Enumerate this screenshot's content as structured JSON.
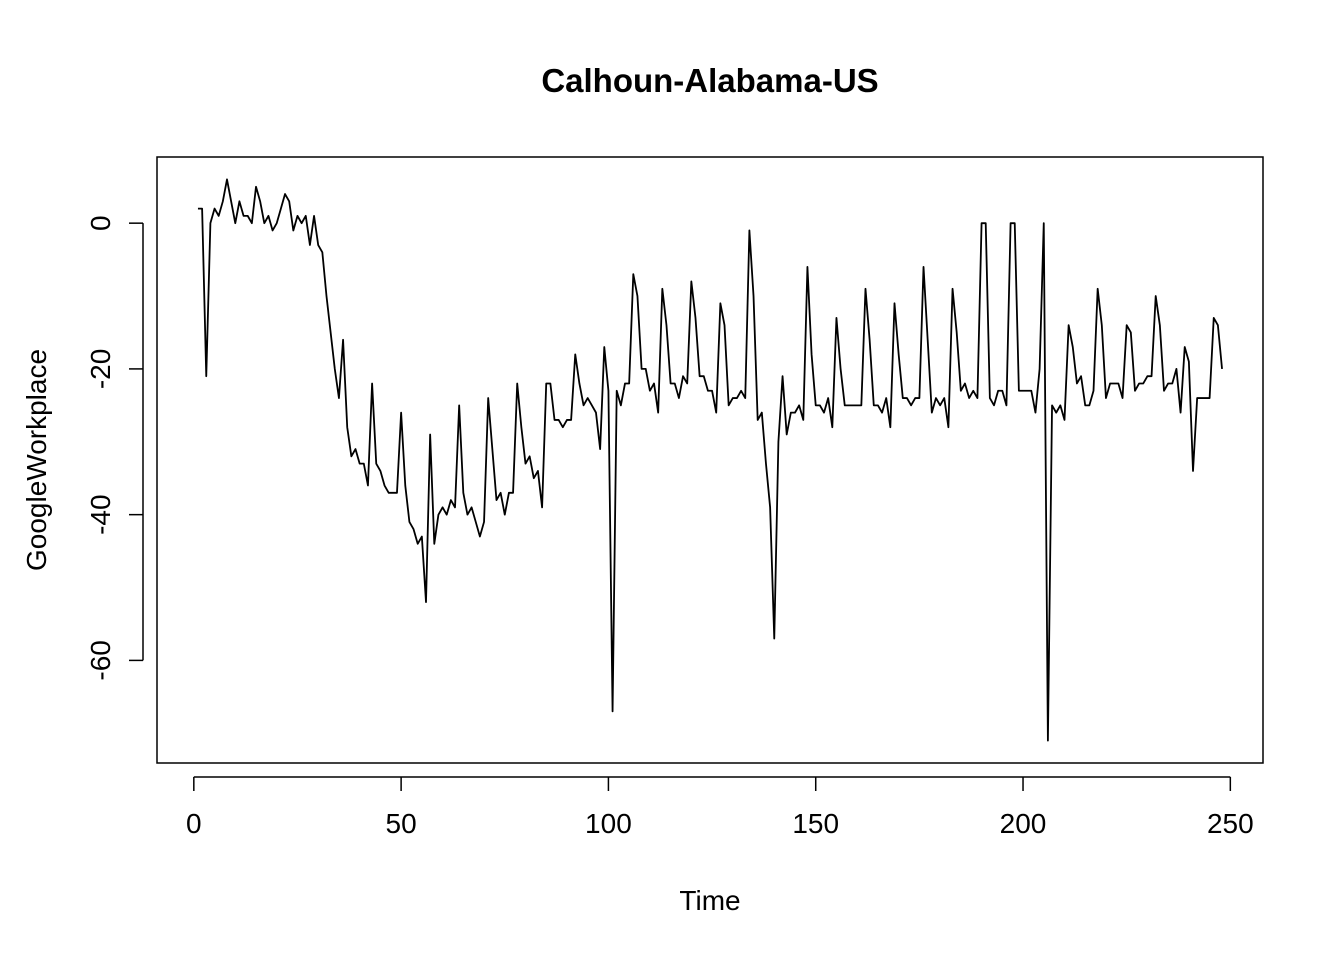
{
  "chart_data": {
    "type": "line",
    "title": "Calhoun-Alabama-US",
    "x_label": "Time",
    "y_label": "GoogleWorkplace",
    "color": "#000000",
    "x": [
      1,
      2,
      3,
      4,
      5,
      6,
      7,
      8,
      9,
      10,
      11,
      12,
      13,
      14,
      15,
      16,
      17,
      18,
      19,
      20,
      21,
      22,
      23,
      24,
      25,
      26,
      27,
      28,
      29,
      30,
      31,
      32,
      33,
      34,
      35,
      36,
      37,
      38,
      39,
      40,
      41,
      42,
      43,
      44,
      45,
      46,
      47,
      48,
      49,
      50,
      51,
      52,
      53,
      54,
      55,
      56,
      57,
      58,
      59,
      60,
      61,
      62,
      63,
      64,
      65,
      66,
      67,
      68,
      69,
      70,
      71,
      72,
      73,
      74,
      75,
      76,
      77,
      78,
      79,
      80,
      81,
      82,
      83,
      84,
      85,
      86,
      87,
      88,
      89,
      90,
      91,
      92,
      93,
      94,
      95,
      96,
      97,
      98,
      99,
      100,
      101,
      102,
      103,
      104,
      105,
      106,
      107,
      108,
      109,
      110,
      111,
      112,
      113,
      114,
      115,
      116,
      117,
      118,
      119,
      120,
      121,
      122,
      123,
      124,
      125,
      126,
      127,
      128,
      129,
      130,
      131,
      132,
      133,
      134,
      135,
      136,
      137,
      138,
      139,
      140,
      141,
      142,
      143,
      144,
      145,
      146,
      147,
      148,
      149,
      150,
      151,
      152,
      153,
      154,
      155,
      156,
      157,
      158,
      159,
      160,
      161,
      162,
      163,
      164,
      165,
      166,
      167,
      168,
      169,
      170,
      171,
      172,
      173,
      174,
      175,
      176,
      177,
      178,
      179,
      180,
      181,
      182,
      183,
      184,
      185,
      186,
      187,
      188,
      189,
      190,
      191,
      192,
      193,
      194,
      195,
      196,
      197,
      198,
      199,
      200,
      201,
      202,
      203,
      204,
      205,
      206,
      207,
      208,
      209,
      210,
      211,
      212,
      213,
      214,
      215,
      216,
      217,
      218,
      219,
      220,
      221,
      222,
      223,
      224,
      225,
      226,
      227,
      228,
      229,
      230,
      231,
      232,
      233,
      234,
      235,
      236,
      237,
      238,
      239,
      240,
      241,
      242,
      243,
      244,
      245,
      246,
      247,
      248
    ],
    "values": [
      2,
      2,
      -21,
      0,
      2,
      1,
      3,
      6,
      3,
      0,
      3,
      1,
      1,
      0,
      5,
      3,
      0,
      1,
      -1,
      0,
      2,
      4,
      3,
      -1,
      1,
      0,
      1,
      -3,
      1,
      -3,
      -4,
      -10,
      -15,
      -20,
      -24,
      -16,
      -28,
      -32,
      -31,
      -33,
      -33,
      -36,
      -22,
      -33,
      -34,
      -36,
      -37,
      -37,
      -37,
      -26,
      -36,
      -41,
      -42,
      -44,
      -43,
      -52,
      -29,
      -44,
      -40,
      -39,
      -40,
      -38,
      -39,
      -25,
      -37,
      -40,
      -39,
      -41,
      -43,
      -41,
      -24,
      -31,
      -38,
      -37,
      -40,
      -37,
      -37,
      -22,
      -28,
      -33,
      -32,
      -35,
      -34,
      -39,
      -22,
      -22,
      -27,
      -27,
      -28,
      -27,
      -27,
      -18,
      -22,
      -25,
      -24,
      -25,
      -26,
      -31,
      -17,
      -23,
      -67,
      -23,
      -25,
      -22,
      -22,
      -7,
      -10,
      -20,
      -20,
      -23,
      -22,
      -26,
      -9,
      -14,
      -22,
      -22,
      -24,
      -21,
      -22,
      -8,
      -13,
      -21,
      -21,
      -23,
      -23,
      -26,
      -11,
      -14,
      -25,
      -24,
      -24,
      -23,
      -24,
      -1,
      -10,
      -27,
      -26,
      -33,
      -39,
      -57,
      -30,
      -21,
      -29,
      -26,
      -26,
      -25,
      -27,
      -6,
      -18,
      -25,
      -25,
      -26,
      -24,
      -28,
      -13,
      -20,
      -25,
      -25,
      -25,
      -25,
      -25,
      -9,
      -16,
      -25,
      -25,
      -26,
      -24,
      -28,
      -11,
      -18,
      -24,
      -24,
      -25,
      -24,
      -24,
      -6,
      -16,
      -26,
      -24,
      -25,
      -24,
      -28,
      -9,
      -15,
      -23,
      -22,
      -24,
      -23,
      -24,
      0,
      0,
      -24,
      -25,
      -23,
      -23,
      -25,
      0,
      0,
      -23,
      -23,
      -23,
      -23,
      -26,
      -20,
      0,
      -71,
      -25,
      -26,
      -25,
      -27,
      -14,
      -17,
      -22,
      -21,
      -25,
      -25,
      -23,
      -9,
      -14,
      -24,
      -22,
      -22,
      -22,
      -24,
      -14,
      -15,
      -23,
      -22,
      -22,
      -21,
      -21,
      -10,
      -14,
      -23,
      -22,
      -22,
      -20,
      -26,
      -17,
      -19,
      -34,
      -24,
      -24,
      -24,
      -24,
      -13,
      -14,
      -20
    ],
    "xlim": [
      -8.88,
      257.88
    ],
    "ylim": [
      -74.08,
      9.08
    ],
    "xticks": [
      0,
      50,
      100,
      150,
      200,
      250
    ],
    "yticks": [
      -60,
      -40,
      -20,
      0
    ]
  }
}
